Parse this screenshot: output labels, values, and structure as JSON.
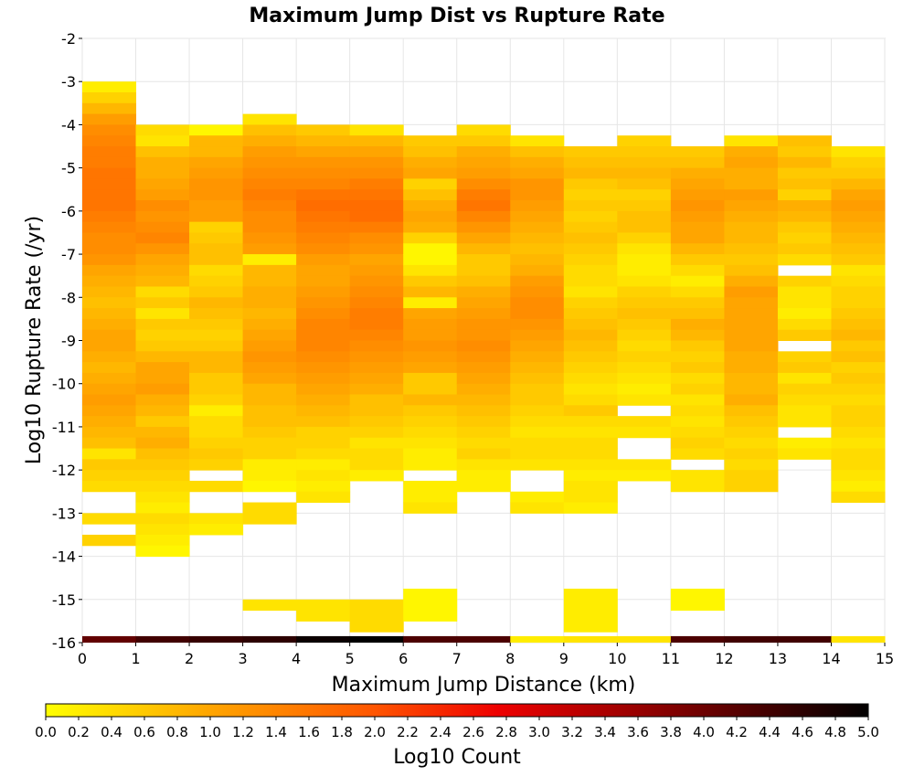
{
  "chart_data": {
    "type": "heatmap",
    "title": "Maximum Jump Dist vs Rupture Rate",
    "xlabel": "Maximum Jump Distance (km)",
    "ylabel": "Log10 Rupture Rate (/yr)",
    "colorbar_label": "Log10 Count",
    "xlim": [
      0,
      15
    ],
    "ylim": [
      -16,
      -2
    ],
    "x_ticks": [
      "0",
      "1",
      "2",
      "3",
      "4",
      "5",
      "6",
      "7",
      "8",
      "9",
      "10",
      "11",
      "12",
      "13",
      "14",
      "15"
    ],
    "y_ticks": [
      "-2",
      "-3",
      "-4",
      "-5",
      "-6",
      "-7",
      "-8",
      "-9",
      "-10",
      "-11",
      "-12",
      "-13",
      "-14",
      "-15",
      "-16"
    ],
    "colorbar_ticks": [
      "0.0",
      "0.2",
      "0.4",
      "0.6",
      "0.8",
      "1.0",
      "1.2",
      "1.4",
      "1.6",
      "1.8",
      "2.0",
      "2.2",
      "2.4",
      "2.6",
      "2.8",
      "3.0",
      "3.2",
      "3.4",
      "3.6",
      "3.8",
      "4.0",
      "4.2",
      "4.4",
      "4.6",
      "4.8",
      "5.0"
    ],
    "z_range": [
      0,
      5
    ],
    "colormap": [
      "#ffff00",
      "#ffa500",
      "#ff5500",
      "#ee0000",
      "#880000",
      "#000000"
    ],
    "x_bin_width_km": 1,
    "y_bin_height_log10": 0.25,
    "bins": [
      {
        "x": 0,
        "y_top": -3.0,
        "values": [
          0.2,
          0.5,
          0.8,
          1.1,
          1.3,
          1.4,
          1.5,
          1.5,
          1.6,
          1.6,
          1.6,
          1.6,
          1.5,
          1.4,
          1.3,
          1.3,
          1.2,
          1.0,
          0.9,
          0.8,
          0.7,
          0.8,
          0.9,
          1.0,
          1.0,
          0.9,
          0.8,
          0.9,
          1.0,
          1.1,
          1.0,
          0.9,
          0.8,
          0.7,
          0.3,
          0.6,
          0.5,
          0.4,
          null,
          null,
          0.4,
          null,
          0.5,
          null,
          null,
          null,
          null,
          null,
          null,
          null,
          null,
          null
        ]
      },
      {
        "x": 1,
        "y_top": -4.0,
        "values": [
          0.4,
          0.3,
          0.7,
          0.9,
          0.9,
          1.0,
          1.1,
          1.3,
          1.2,
          1.3,
          1.4,
          1.2,
          1.0,
          0.9,
          0.8,
          0.4,
          0.6,
          0.3,
          0.6,
          0.5,
          0.6,
          0.8,
          1.0,
          1.0,
          1.1,
          0.9,
          0.8,
          0.6,
          0.8,
          0.9,
          0.7,
          0.6,
          0.5,
          0.4,
          0.3,
          0.2,
          0.4,
          0.3,
          0.2,
          0.1,
          null,
          null,
          null,
          null,
          null,
          null,
          null,
          null
        ]
      },
      {
        "x": 2,
        "y_top": -4.0,
        "values": [
          0.1,
          0.8,
          0.8,
          1.0,
          1.1,
          1.2,
          1.2,
          1.1,
          1.1,
          0.5,
          0.6,
          0.7,
          0.7,
          0.4,
          0.5,
          0.6,
          0.8,
          0.7,
          0.6,
          0.5,
          0.6,
          0.8,
          0.8,
          0.6,
          0.6,
          0.5,
          0.2,
          0.4,
          0.4,
          0.5,
          0.6,
          0.5,
          null,
          0.4,
          null,
          null,
          0.3,
          0.2,
          null,
          null,
          null,
          null,
          null,
          null,
          null,
          null,
          null,
          null
        ]
      },
      {
        "x": 3,
        "y_top": -3.75,
        "values": [
          0.3,
          0.7,
          0.9,
          1.1,
          1.2,
          1.3,
          1.4,
          1.5,
          1.4,
          1.3,
          1.3,
          1.2,
          1.1,
          0.2,
          0.8,
          0.8,
          0.9,
          0.9,
          0.8,
          0.9,
          1.0,
          1.1,
          1.2,
          1.1,
          1.0,
          0.8,
          0.8,
          0.7,
          0.7,
          0.6,
          0.5,
          0.5,
          0.2,
          0.2,
          0.1,
          null,
          0.4,
          0.4,
          null,
          null,
          null,
          null,
          null,
          null,
          null,
          null,
          null,
          null
        ]
      },
      {
        "x": 4,
        "y_top": -4.0,
        "values": [
          0.6,
          0.8,
          1.0,
          1.2,
          1.3,
          1.4,
          1.6,
          1.7,
          1.6,
          1.5,
          1.4,
          1.3,
          1.1,
          1.0,
          1.0,
          1.1,
          1.2,
          1.3,
          1.4,
          1.4,
          1.4,
          1.3,
          1.2,
          1.1,
          1.0,
          0.9,
          0.8,
          0.7,
          0.5,
          0.5,
          0.4,
          0.2,
          0.3,
          0.2,
          0.3,
          null,
          null,
          null,
          null,
          null,
          null,
          null,
          null,
          null,
          null,
          null,
          null,
          null
        ]
      },
      {
        "x": 5,
        "y_top": -4.0,
        "values": [
          0.3,
          0.8,
          1.0,
          1.2,
          1.3,
          1.5,
          1.6,
          1.7,
          1.7,
          1.5,
          1.3,
          1.2,
          1.0,
          1.1,
          1.2,
          1.3,
          1.4,
          1.5,
          1.5,
          1.4,
          1.3,
          1.2,
          1.1,
          1.0,
          0.9,
          0.7,
          0.7,
          0.6,
          0.5,
          0.3,
          0.4,
          0.4,
          0.2,
          null,
          null,
          null,
          null,
          null,
          null,
          null,
          null,
          null,
          null,
          null,
          null,
          null,
          null,
          null
        ]
      },
      {
        "x": 6,
        "y_top": -4.25,
        "values": [
          0.6,
          0.7,
          0.9,
          1.0,
          0.5,
          0.7,
          0.9,
          1.0,
          0.9,
          0.5,
          0.1,
          0.1,
          0.3,
          0.6,
          0.8,
          0.2,
          1.0,
          1.1,
          1.1,
          1.2,
          1.1,
          1.0,
          0.6,
          0.6,
          0.8,
          0.6,
          0.5,
          0.4,
          0.3,
          0.2,
          0.2,
          null,
          0.2,
          0.2,
          0.3,
          null,
          null,
          null,
          null,
          null,
          null,
          null,
          null,
          null,
          null,
          null,
          null,
          null
        ]
      },
      {
        "x": 7,
        "y_top": -4.0,
        "values": [
          0.4,
          0.6,
          0.9,
          1.0,
          1.1,
          1.3,
          1.5,
          1.6,
          1.4,
          1.2,
          1.0,
          0.8,
          0.6,
          0.6,
          0.7,
          0.9,
          1.0,
          1.1,
          1.2,
          1.2,
          1.3,
          1.2,
          1.1,
          1.0,
          0.9,
          0.8,
          0.7,
          0.6,
          0.5,
          0.4,
          0.5,
          0.3,
          0.2,
          0.2,
          null,
          null,
          null,
          null,
          null,
          null,
          null,
          null,
          null,
          null,
          null,
          null,
          null,
          null
        ]
      },
      {
        "x": 8,
        "y_top": -4.25,
        "values": [
          0.3,
          0.7,
          0.9,
          1.0,
          1.2,
          1.2,
          1.1,
          1.0,
          0.9,
          0.8,
          0.7,
          0.8,
          0.9,
          1.1,
          1.2,
          1.3,
          1.3,
          1.2,
          1.1,
          1.0,
          0.9,
          0.8,
          0.7,
          0.6,
          0.6,
          0.5,
          0.4,
          0.3,
          0.4,
          0.4,
          0.3,
          null,
          null,
          0.2,
          0.3,
          null,
          null,
          null,
          null,
          null,
          null,
          null,
          null,
          null,
          null,
          null,
          null,
          null
        ]
      },
      {
        "x": 9,
        "y_top": -4.5,
        "values": [
          0.6,
          0.7,
          0.8,
          0.6,
          0.5,
          0.6,
          0.5,
          0.6,
          0.7,
          0.6,
          0.5,
          0.4,
          0.4,
          0.3,
          0.5,
          0.6,
          0.7,
          0.8,
          0.7,
          0.6,
          0.5,
          0.4,
          0.3,
          0.4,
          0.6,
          0.4,
          0.3,
          0.4,
          0.4,
          0.3,
          0.2,
          0.3,
          0.3,
          0.2,
          null,
          null,
          null,
          null,
          null,
          null,
          null,
          null,
          null,
          null,
          null,
          null,
          null,
          null
        ]
      },
      {
        "x": 10,
        "y_top": -4.25,
        "values": [
          0.5,
          0.6,
          0.7,
          0.8,
          0.7,
          0.5,
          0.6,
          0.7,
          0.7,
          0.5,
          0.3,
          0.2,
          0.2,
          0.3,
          0.5,
          0.6,
          0.7,
          0.6,
          0.5,
          0.4,
          0.5,
          0.4,
          0.3,
          0.2,
          0.3,
          null,
          0.4,
          0.3,
          null,
          null,
          0.3,
          0.2,
          null,
          null,
          null,
          null,
          null,
          null,
          null,
          null,
          null,
          null,
          null,
          null,
          null,
          null,
          null,
          null
        ]
      },
      {
        "x": 11,
        "y_top": -4.5,
        "values": [
          0.6,
          0.7,
          0.9,
          1.0,
          1.1,
          1.2,
          1.1,
          1.0,
          1.0,
          0.8,
          0.6,
          0.4,
          0.2,
          0.4,
          0.6,
          0.7,
          0.9,
          0.8,
          0.6,
          0.5,
          0.6,
          0.4,
          0.5,
          0.3,
          0.4,
          0.3,
          0.4,
          0.5,
          0.4,
          null,
          0.3,
          0.3,
          null,
          null,
          null,
          null,
          null,
          null,
          null,
          null,
          null,
          null,
          null,
          null,
          null,
          null,
          null,
          null
        ]
      },
      {
        "x": 12,
        "y_top": -4.25,
        "values": [
          0.3,
          0.9,
          1.0,
          0.9,
          0.9,
          1.1,
          1.0,
          0.9,
          0.8,
          0.8,
          0.7,
          0.6,
          0.7,
          0.9,
          1.1,
          1.0,
          1.0,
          1.0,
          1.0,
          1.0,
          0.9,
          0.9,
          0.8,
          0.8,
          0.9,
          0.7,
          0.6,
          0.5,
          0.4,
          0.5,
          0.4,
          0.5,
          0.5,
          null,
          null,
          null,
          null,
          null,
          null,
          null,
          null,
          null,
          null,
          null,
          null,
          null,
          null,
          null
        ]
      },
      {
        "x": 13,
        "y_top": -4.25,
        "values": [
          0.7,
          0.6,
          0.8,
          0.6,
          0.7,
          0.5,
          0.9,
          0.8,
          0.6,
          0.5,
          0.6,
          0.4,
          null,
          0.5,
          0.3,
          0.3,
          0.2,
          0.4,
          0.6,
          null,
          0.5,
          0.6,
          0.3,
          0.5,
          0.4,
          0.3,
          0.3,
          null,
          0.2,
          0.3,
          null,
          null,
          null,
          null,
          null,
          null,
          null,
          null,
          null,
          null,
          null,
          null,
          null,
          null,
          null,
          null,
          null,
          null
        ]
      },
      {
        "x": 14,
        "y_top": -4.5,
        "values": [
          0.3,
          0.5,
          0.6,
          0.8,
          1.0,
          1.1,
          1.0,
          0.9,
          0.8,
          0.7,
          0.6,
          0.3,
          0.4,
          0.5,
          0.5,
          0.6,
          0.7,
          0.8,
          0.6,
          0.7,
          0.5,
          0.6,
          0.5,
          0.4,
          0.5,
          0.5,
          0.4,
          0.3,
          0.4,
          0.4,
          0.3,
          0.2,
          0.4,
          null,
          null,
          null,
          null,
          null,
          null,
          null,
          null,
          null,
          null,
          null,
          null,
          null,
          null,
          null
        ]
      }
    ],
    "bottom_row": {
      "y_top": -15.85,
      "y_bottom": -16.0,
      "values": [
        4.1,
        4.4,
        4.5,
        4.6,
        4.9,
        5.0,
        4.3,
        4.3,
        0.2,
        0.3,
        0.3,
        4.3,
        4.4,
        4.4,
        0.3
      ]
    },
    "low_bins": [
      {
        "x": 3,
        "y_top": -15.0,
        "y_bottom": -15.25,
        "value": 0.3
      },
      {
        "x": 4,
        "y_top": -15.0,
        "y_bottom": -15.5,
        "value": 0.3
      },
      {
        "x": 5,
        "y_top": -15.0,
        "y_bottom": -15.75,
        "value": 0.4
      },
      {
        "x": 6,
        "y_top": -14.75,
        "y_bottom": -15.5,
        "value": 0.1
      },
      {
        "x": 9,
        "y_top": -14.75,
        "y_bottom": -15.75,
        "value": 0.2
      },
      {
        "x": 11,
        "y_top": -14.75,
        "y_bottom": -15.25,
        "value": 0.1
      }
    ]
  }
}
